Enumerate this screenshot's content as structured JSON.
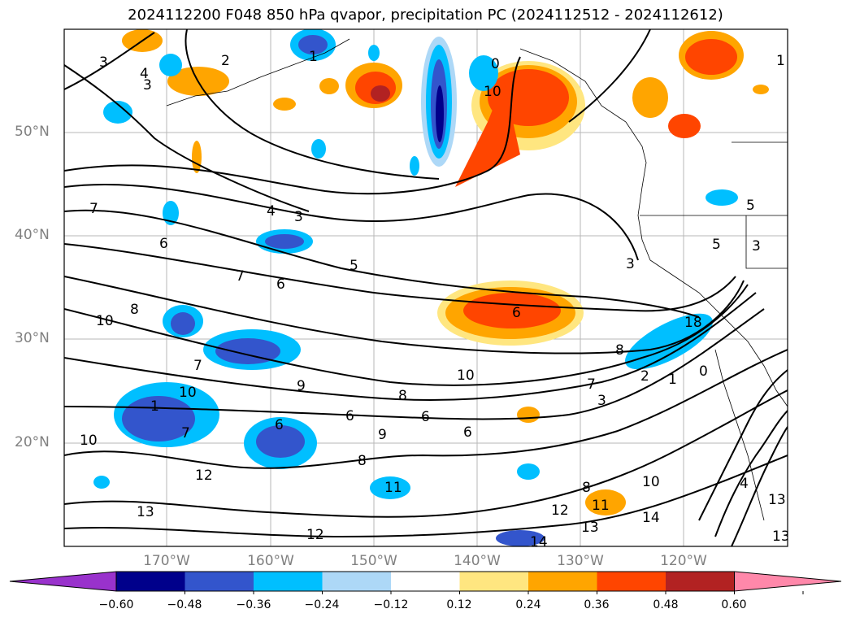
{
  "title": "2024112200 F048 850 hPa qvapor, precipitation PC (2024112512 - 2024112612)",
  "latitude_labels": [
    "50°N",
    "40°N",
    "30°N",
    "20°N"
  ],
  "longitude_labels": [
    "170°W",
    "160°W",
    "150°W",
    "140°W",
    "130°W",
    "120°W"
  ],
  "colorbar": {
    "ticks": [
      "−0.60",
      "−0.48",
      "−0.36",
      "−0.24",
      "−0.12",
      "0.12",
      "0.24",
      "0.36",
      "0.48",
      "0.60"
    ],
    "colors": [
      "#9932cc",
      "#00008b",
      "#3355cc",
      "#00bfff",
      "#add8f7",
      "#ffffff",
      "#ffe680",
      "#ffa500",
      "#ff4500",
      "#b22222",
      "#ff88aa"
    ]
  },
  "contour_labels": [
    "3",
    "4",
    "5",
    "6",
    "7",
    "8",
    "9",
    "10",
    "11",
    "12",
    "13",
    "14",
    "2",
    "1",
    "0",
    "18"
  ]
}
